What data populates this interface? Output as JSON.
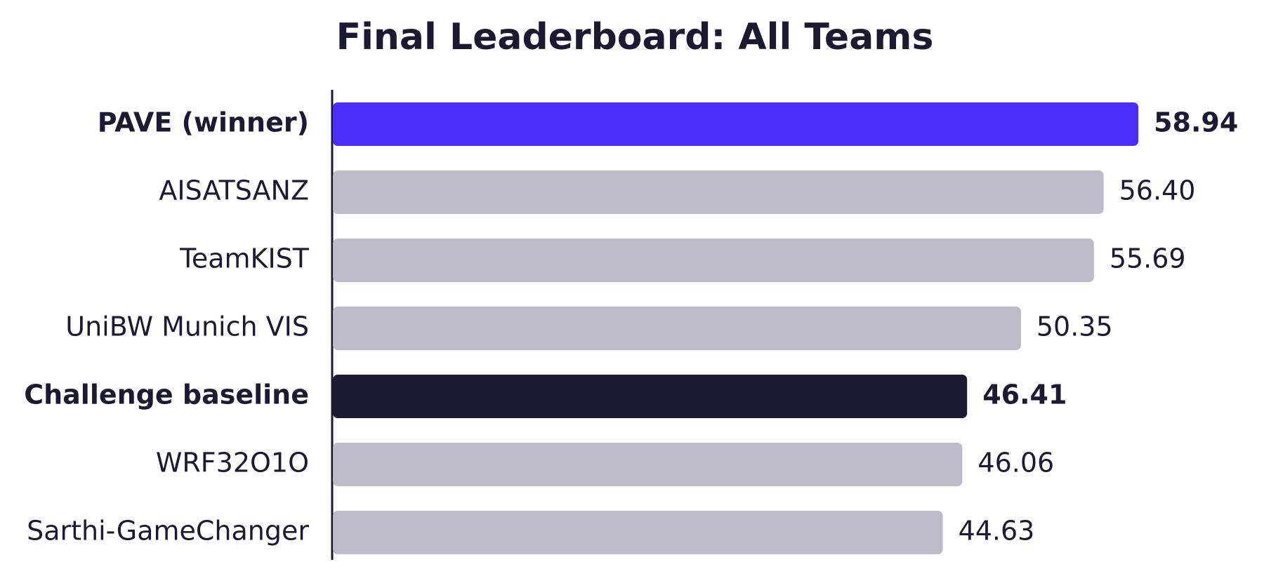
{
  "chart_data": {
    "type": "hbar",
    "title": "Final Leaderboard: All Teams",
    "categories": [
      "PAVE (winner)",
      "AISATSANZ",
      "TeamKIST",
      "UniBW Munich VIS",
      "Challenge baseline",
      "WRF32O1O",
      "Sarthi-GameChanger"
    ],
    "values": [
      58.94,
      56.4,
      55.69,
      50.35,
      46.41,
      46.06,
      44.63
    ],
    "value_labels": [
      "58.94",
      "56.40",
      "55.69",
      "50.35",
      "46.41",
      "46.06",
      "44.63"
    ],
    "colors": [
      "#4b2efc",
      "#bdbbc9",
      "#bdbbc9",
      "#bdbbc9",
      "#1c1a33",
      "#bdbbc9",
      "#bdbbc9"
    ],
    "bold": [
      true,
      false,
      false,
      false,
      true,
      false,
      false
    ],
    "xlim": [
      0,
      65
    ]
  }
}
